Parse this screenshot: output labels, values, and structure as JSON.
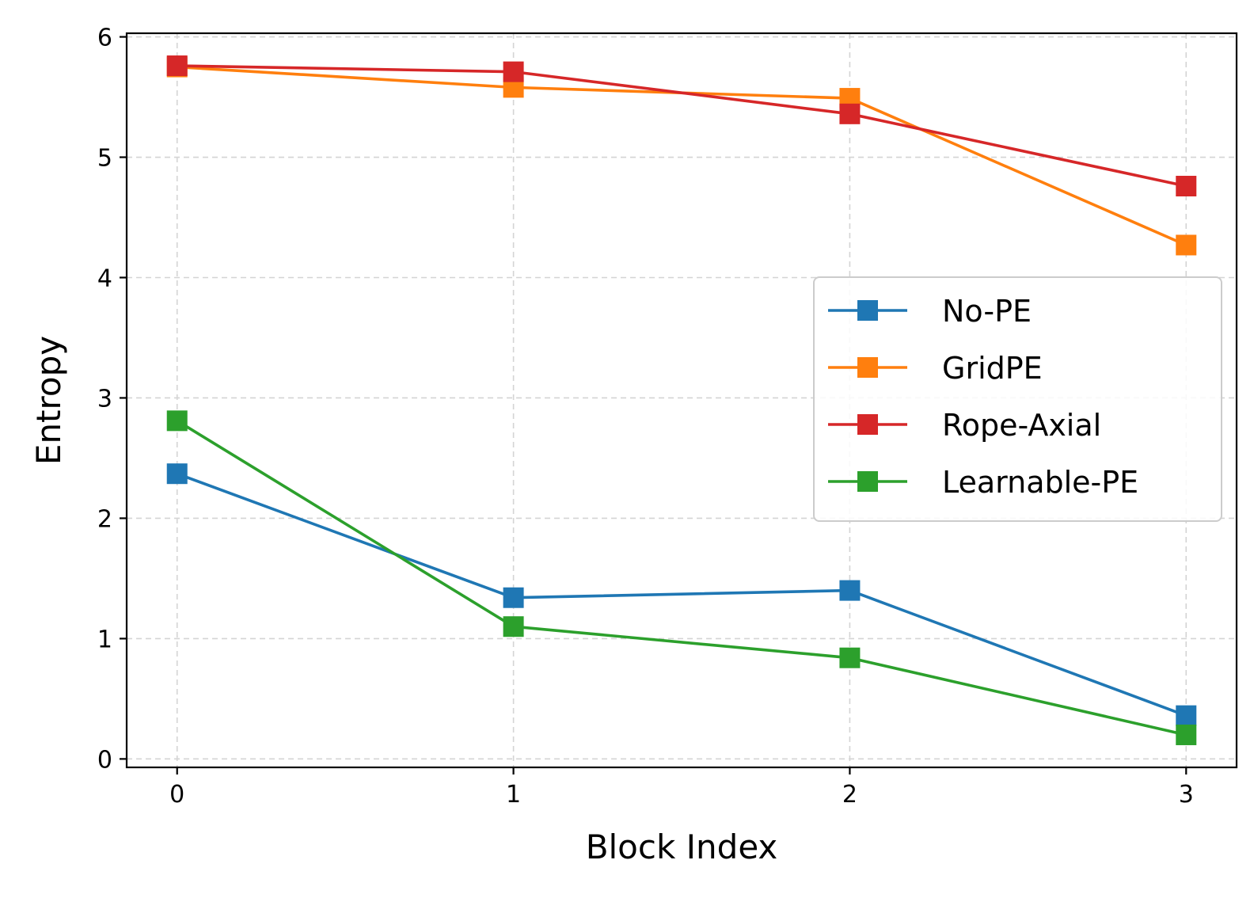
{
  "chart_data": {
    "type": "line",
    "title": "",
    "xlabel": "Block Index",
    "ylabel": "Entropy",
    "x": [
      0,
      1,
      2,
      3
    ],
    "x_ticks": [
      "0",
      "1",
      "2",
      "3"
    ],
    "y_ticks": [
      "0",
      "1",
      "2",
      "3",
      "4",
      "5",
      "6"
    ],
    "xlim": [
      -0.15,
      3.15
    ],
    "ylim": [
      -0.07,
      6.03
    ],
    "grid": true,
    "legend_position": "center-right",
    "marker": "square",
    "series": [
      {
        "name": "No-PE",
        "color": "#1f77b4",
        "values": [
          2.37,
          1.34,
          1.4,
          0.36
        ]
      },
      {
        "name": "GridPE",
        "color": "#ff7f0e",
        "values": [
          5.75,
          5.58,
          5.49,
          4.27
        ]
      },
      {
        "name": "Rope-Axial",
        "color": "#d62728",
        "values": [
          5.76,
          5.71,
          5.36,
          4.76
        ]
      },
      {
        "name": "Learnable-PE",
        "color": "#2ca02c",
        "values": [
          2.81,
          1.1,
          0.84,
          0.2
        ]
      }
    ]
  }
}
